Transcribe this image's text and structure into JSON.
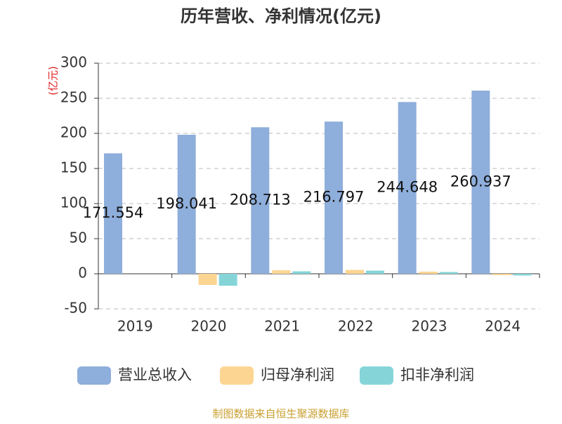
{
  "chart_data": {
    "type": "bar",
    "title": "历年营收、净利情况(亿元)",
    "y_label": "(亿元)",
    "categories": [
      "2019",
      "2020",
      "2021",
      "2022",
      "2023",
      "2024"
    ],
    "series": [
      {
        "name": "营业总收入",
        "color": "#8eaedb",
        "values": [
          171.554,
          198.041,
          208.713,
          216.797,
          244.648,
          260.937
        ],
        "show_labels": true
      },
      {
        "name": "归母净利润",
        "color": "#fdd592",
        "values": [
          null,
          -16,
          5,
          5.5,
          3,
          -2
        ],
        "show_labels": false
      },
      {
        "name": "扣非净利润",
        "color": "#85d5d8",
        "values": [
          null,
          -17,
          3.5,
          4.5,
          2.5,
          -2.5
        ],
        "show_labels": false
      }
    ],
    "ylim": [
      -50,
      300
    ],
    "yticks": [
      -50,
      0,
      50,
      100,
      150,
      200,
      250,
      300
    ],
    "grid": true,
    "source": "制图数据来自恒生聚源数据库"
  }
}
